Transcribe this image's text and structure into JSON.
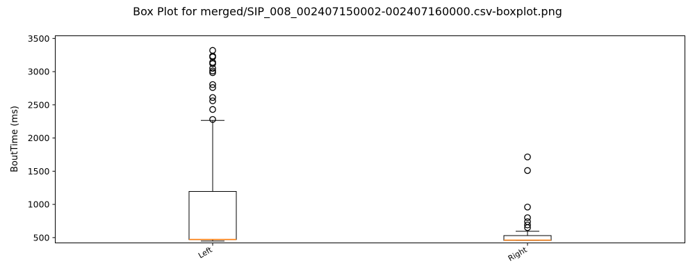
{
  "chart_data": {
    "type": "boxplot",
    "title": "Box Plot for merged/SIP_008_002407150002-002407160000.csv-boxplot.png",
    "xlabel": "",
    "ylabel": "BoutTime (ms)",
    "ylim": [
      420,
      3540
    ],
    "yticks": [
      500,
      1000,
      1500,
      2000,
      2500,
      3000,
      3500
    ],
    "categories": [
      "Left",
      "Right"
    ],
    "boxes": [
      {
        "category": "Left",
        "whisker_low": 448,
        "q1": 470,
        "median": 472,
        "q3": 1195,
        "whisker_high": 2265,
        "outliers": [
          2280,
          2430,
          2560,
          2610,
          2760,
          2805,
          2985,
          3010,
          3050,
          3120,
          3140,
          3220,
          3235,
          3320
        ]
      },
      {
        "category": "Right",
        "whisker_low": 458,
        "q1": 458,
        "median": 462,
        "q3": 530,
        "whisker_high": 595,
        "outliers": [
          650,
          690,
          740,
          800,
          960,
          1510,
          1715
        ]
      }
    ],
    "colors": {
      "box": "#000000",
      "median": "#ff7f0e",
      "outlier": "#000000"
    },
    "grid": false,
    "legend": "none"
  }
}
